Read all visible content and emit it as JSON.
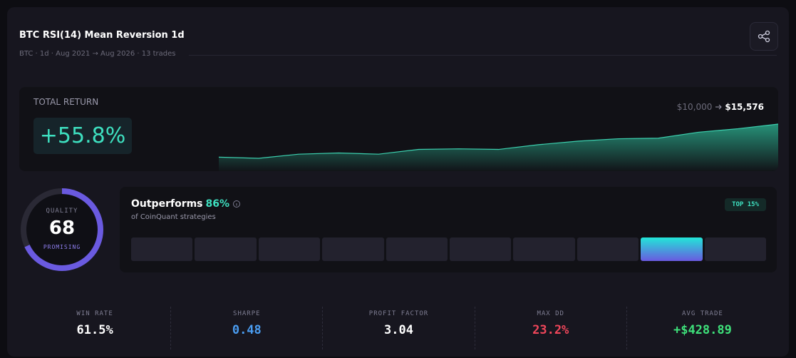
{
  "header": {
    "title": "BTC RSI(14) Mean Reversion 1d",
    "subtitle": "BTC · 1d · Aug 2021 → Aug 2026 · 13 trades"
  },
  "total_return": {
    "label": "TOTAL RETURN",
    "value": "+55.8%",
    "start": "$10,000",
    "end": "$15,576",
    "curve": [
      10000,
      9800,
      10500,
      10700,
      10500,
      11300,
      11400,
      11300,
      12100,
      12700,
      13100,
      13200,
      14200,
      14800,
      15576
    ]
  },
  "quality": {
    "label": "QUALITY",
    "score": 68,
    "rating": "PROMISING"
  },
  "percentile": {
    "title": "Outperforms",
    "value": 86,
    "value_label": "86%",
    "caption": "of CoinQuant strategies",
    "badge": "TOP 15%"
  },
  "stats": [
    {
      "label": "WIN RATE",
      "value": "61.5%",
      "color": "#ffffff"
    },
    {
      "label": "SHARPE",
      "value": "0.48",
      "color": "#4a9cf0"
    },
    {
      "label": "PROFIT FACTOR",
      "value": "3.04",
      "color": "#ffffff"
    },
    {
      "label": "MAX DD",
      "value": "23.2%",
      "color": "#f0465a"
    },
    {
      "label": "AVG TRADE",
      "value": "+$428.89",
      "color": "#3ee07a"
    }
  ]
}
